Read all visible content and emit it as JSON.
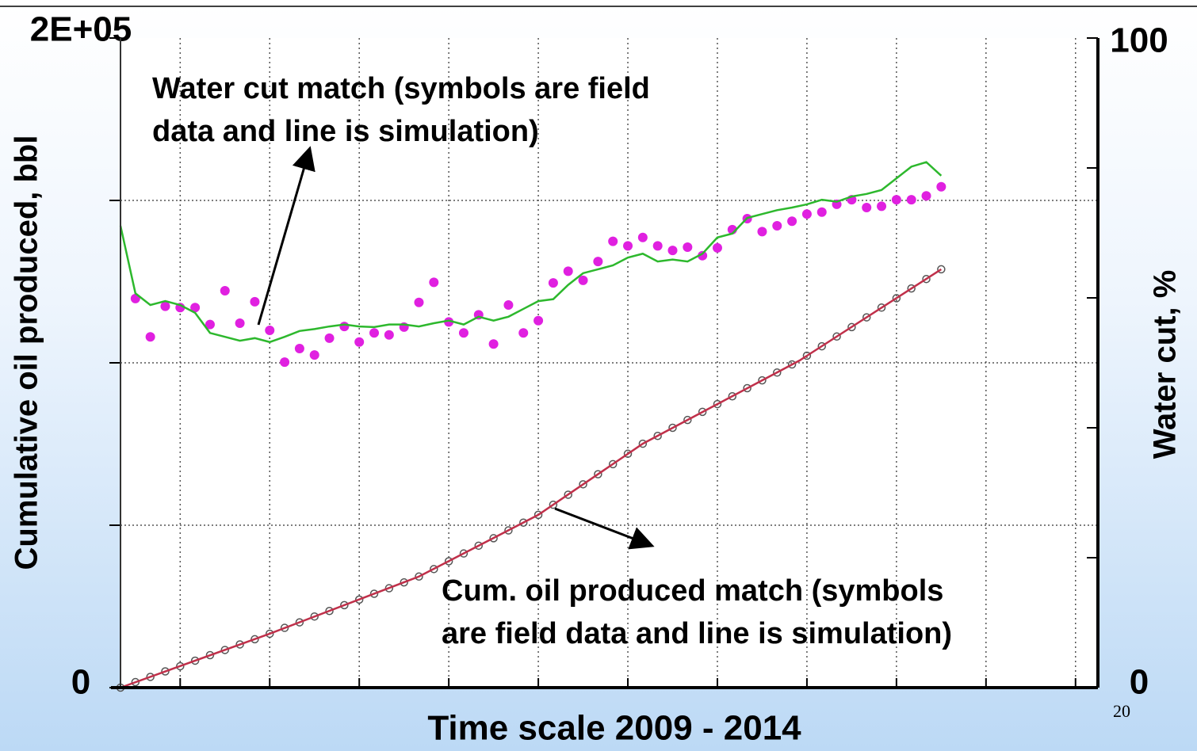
{
  "chart_data": {
    "type": "line",
    "ylabel": "Cumulative oil produced, bbl",
    "y2label": "Water cut, %",
    "xlabel": "Time scale 2009 - 2014",
    "annotations": [
      [
        "Water cut match (symbols are field",
        "data and line is simulation)"
      ],
      [
        "Cum. oil produced match (symbols",
        "are field data and line is simulation)"
      ]
    ],
    "xlim": [
      0,
      65.5
    ],
    "xticks": [
      {
        "value": 4,
        "label": null
      },
      {
        "value": 10,
        "label": null
      },
      {
        "value": 16,
        "label": null
      },
      {
        "value": 22,
        "label": null
      },
      {
        "value": 28,
        "label": null
      },
      {
        "value": 34,
        "label": null
      },
      {
        "value": 40,
        "label": null
      },
      {
        "value": 46,
        "label": null
      },
      {
        "value": 52,
        "label": null
      },
      {
        "value": 58,
        "label": null
      },
      {
        "value": 64,
        "label": null
      }
    ],
    "ylim": [
      0,
      200000
    ],
    "yticks": [
      0,
      {
        "value": 50000,
        "label": null
      },
      {
        "value": 100000,
        "label": null
      },
      {
        "value": 150000,
        "label": null
      },
      {
        "value": 200000,
        "label": "2E+05"
      }
    ],
    "y2lim": [
      0,
      100
    ],
    "y2ticks": [
      0,
      {
        "value": 20,
        "label": null
      },
      {
        "value": 40,
        "label": null
      },
      {
        "value": 60,
        "label": null
      },
      {
        "value": 80,
        "label": null
      },
      100
    ],
    "grid": true,
    "series": [
      {
        "style": "markers",
        "color": "#e020e0",
        "axis": "y2",
        "x": [
          1,
          2,
          3,
          4,
          5,
          6,
          7,
          8,
          9,
          10,
          11,
          12,
          13,
          14,
          15,
          16,
          17,
          18,
          19,
          20,
          21,
          22,
          23,
          24,
          25,
          26,
          27,
          28,
          29,
          30,
          31,
          32,
          33,
          34,
          35,
          36,
          37,
          38,
          39,
          40,
          41,
          42,
          43,
          44,
          45,
          46,
          47,
          48,
          49,
          50,
          51,
          52,
          53,
          54,
          55
        ],
        "values": [
          59.9,
          54.0,
          58.7,
          58.5,
          58.5,
          55.9,
          61.1,
          56.1,
          59.4,
          55.0,
          50.1,
          52.2,
          51.2,
          53.8,
          55.6,
          53.2,
          54.6,
          54.3,
          55.5,
          59.3,
          62.4,
          56.3,
          54.6,
          57.4,
          52.9,
          58.9,
          54.6,
          56.5,
          62.3,
          64.1,
          62.7,
          65.6,
          68.7,
          68.0,
          69.3,
          68.0,
          67.3,
          67.8,
          66.5,
          67.7,
          70.5,
          72.2,
          70.2,
          71.1,
          71.8,
          72.9,
          73.2,
          74.4,
          75.1,
          73.9,
          74.1,
          75.1,
          75.1,
          75.7,
          77.1
        ]
      },
      {
        "style": "line",
        "color": "#2db82d",
        "axis": "y2",
        "x": [
          0,
          1,
          2,
          3,
          4,
          5,
          6,
          7,
          8,
          9,
          10,
          11,
          12,
          13,
          14,
          15,
          16,
          17,
          18,
          19,
          20,
          21,
          22,
          23,
          24,
          25,
          26,
          27,
          28,
          29,
          30,
          31,
          32,
          33,
          34,
          35,
          36,
          37,
          38,
          39,
          40,
          41,
          42,
          43,
          44,
          45,
          46,
          47,
          48,
          49,
          50,
          51,
          52,
          53,
          54,
          55
        ],
        "values": [
          71.1,
          60.7,
          58.9,
          59.5,
          58.9,
          57.7,
          54.6,
          54.0,
          53.4,
          53.8,
          53.2,
          54.0,
          54.9,
          55.2,
          55.6,
          55.9,
          55.6,
          55.5,
          55.9,
          55.9,
          55.6,
          56.1,
          56.5,
          55.9,
          57.1,
          56.5,
          57.1,
          58.3,
          59.5,
          59.8,
          62.0,
          63.8,
          64.4,
          65.0,
          66.2,
          66.8,
          65.6,
          65.9,
          65.6,
          66.8,
          69.3,
          69.9,
          72.3,
          72.9,
          73.5,
          73.9,
          74.4,
          75.1,
          74.8,
          75.6,
          76.0,
          76.6,
          78.4,
          80.2,
          80.9,
          78.8
        ]
      },
      {
        "style": "hollow",
        "color": "#555555",
        "x": [
          0,
          1,
          2,
          3,
          4,
          5,
          6,
          7,
          8,
          9,
          10,
          11,
          12,
          13,
          14,
          15,
          16,
          17,
          18,
          19,
          20,
          21,
          22,
          23,
          24,
          25,
          26,
          27,
          28,
          29,
          30,
          31,
          32,
          33,
          34,
          35,
          36,
          37,
          38,
          39,
          40,
          41,
          42,
          43,
          44,
          45,
          46,
          47,
          48,
          49,
          50,
          51,
          52,
          53,
          54,
          55
        ],
        "values": [
          0,
          1700,
          3300,
          5000,
          6600,
          8300,
          10000,
          11600,
          13300,
          14900,
          16600,
          18400,
          20100,
          21900,
          23600,
          25400,
          27100,
          28900,
          30600,
          32400,
          34200,
          36500,
          38900,
          41300,
          43700,
          46000,
          48400,
          50800,
          53200,
          56300,
          59400,
          62600,
          65700,
          68800,
          72000,
          75100,
          77500,
          80000,
          82400,
          84900,
          87300,
          89700,
          92200,
          94600,
          97000,
          99500,
          102200,
          105100,
          108100,
          111000,
          114000,
          117000,
          119900,
          122900,
          125800,
          128800
        ]
      },
      {
        "style": "line",
        "color": "#c0304a",
        "x": [
          0,
          10,
          20,
          28,
          35,
          45.5,
          55
        ],
        "values": [
          0,
          16600,
          34200,
          53200,
          75100,
          100700,
          128800
        ]
      }
    ]
  },
  "page_number": 20
}
